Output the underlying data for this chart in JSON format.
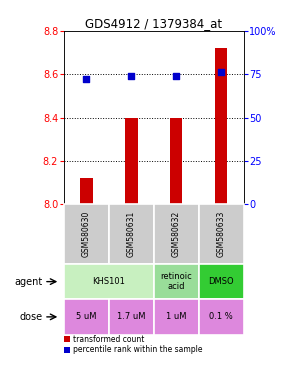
{
  "title": "GDS4912 / 1379384_at",
  "samples": [
    "GSM580630",
    "GSM580631",
    "GSM580632",
    "GSM580633"
  ],
  "bar_values": [
    8.12,
    8.4,
    8.4,
    8.72
  ],
  "bar_color": "#cc0000",
  "dot_values": [
    72,
    74,
    74,
    76
  ],
  "dot_color": "#0000cc",
  "ylim_left": [
    8.0,
    8.8
  ],
  "ylim_right": [
    0,
    100
  ],
  "yticks_left": [
    8.0,
    8.2,
    8.4,
    8.6,
    8.8
  ],
  "yticks_right": [
    0,
    25,
    50,
    75,
    100
  ],
  "ytick_labels_right": [
    "0",
    "25",
    "50",
    "75",
    "100%"
  ],
  "grid_values": [
    8.2,
    8.4,
    8.6
  ],
  "agent_defs": [
    [
      0,
      2,
      "KHS101",
      "#c8f0c0"
    ],
    [
      2,
      3,
      "retinoic\nacid",
      "#99dd99"
    ],
    [
      3,
      4,
      "DMSO",
      "#33cc33"
    ]
  ],
  "doses": [
    "5 uM",
    "1.7 uM",
    "1 uM",
    "0.1 %"
  ],
  "dose_color": "#dd88dd",
  "sample_bg": "#cccccc",
  "legend_red": "transformed count",
  "legend_blue": "percentile rank within the sample"
}
